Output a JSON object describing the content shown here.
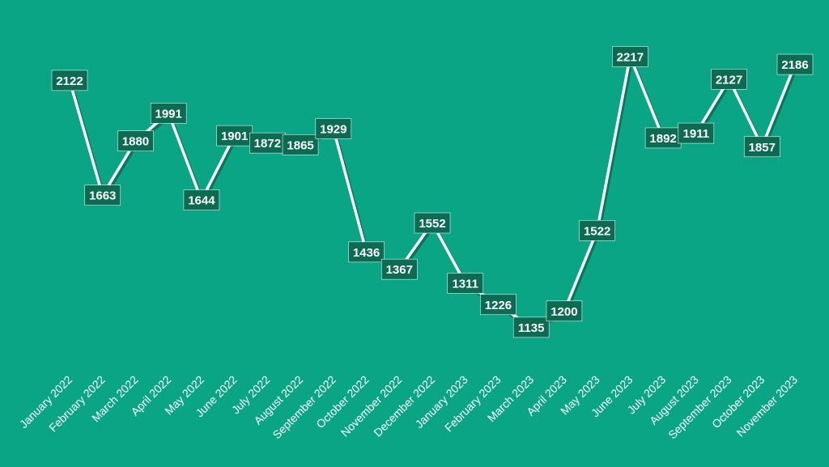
{
  "chart_data": {
    "type": "line",
    "title": "",
    "xlabel": "",
    "ylabel": "",
    "ylim": [
      900,
      2300
    ],
    "grid": false,
    "legend": "none",
    "drop_lines": true,
    "data_labels": true,
    "categories": [
      "January 2022",
      "February 2022",
      "March 2022",
      "April 2022",
      "May 2022",
      "June 2022",
      "July 2022",
      "August 2022",
      "September 2022",
      "October 2022",
      "November 2022",
      "December 2022",
      "January 2023",
      "February 2023",
      "March 2023",
      "April 2023",
      "May 2023",
      "June 2023",
      "July 2023",
      "August 2023",
      "September 2023",
      "October 2023",
      "November 2023"
    ],
    "series": [
      {
        "values": [
          2122,
          1663,
          1880,
          1991,
          1644,
          1901,
          1872,
          1865,
          1929,
          1436,
          1367,
          1552,
          1311,
          1226,
          1135,
          1200,
          1522,
          2217,
          1892,
          1911,
          2127,
          1857,
          2186
        ]
      }
    ]
  },
  "colors": {
    "background": "#0aa584",
    "line": "#ffffff",
    "line_shadow": "#0b4d3c",
    "label_fill": "#0d6b52",
    "label_text": "#ffffff"
  }
}
